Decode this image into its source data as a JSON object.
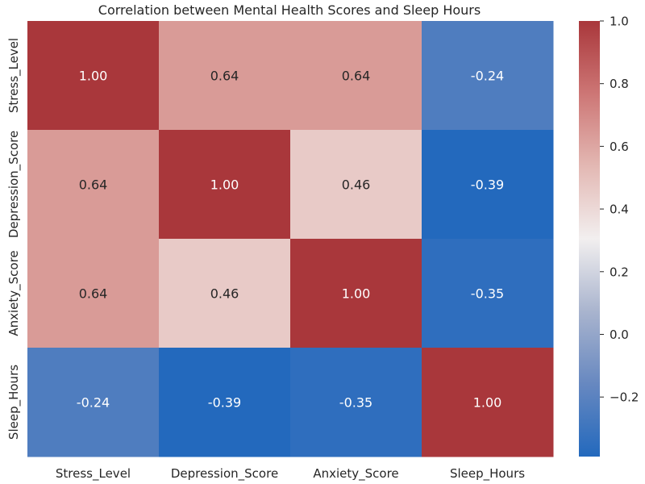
{
  "chart_data": {
    "type": "heatmap",
    "title": "Correlation between Mental Health Scores and Sleep Hours",
    "xlabel": "",
    "ylabel": "",
    "rows": [
      "Stress_Level",
      "Depression_Score",
      "Anxiety_Score",
      "Sleep_Hours"
    ],
    "columns": [
      "Stress_Level",
      "Depression_Score",
      "Anxiety_Score",
      "Sleep_Hours"
    ],
    "values": [
      [
        1.0,
        0.64,
        0.64,
        -0.24
      ],
      [
        0.64,
        1.0,
        0.46,
        -0.39
      ],
      [
        0.64,
        0.46,
        1.0,
        -0.35
      ],
      [
        -0.24,
        -0.39,
        -0.35,
        1.0
      ]
    ],
    "annotation_format": "0.00",
    "colorbar": {
      "min": -0.39,
      "max": 1.0,
      "ticks": [
        1.0,
        0.8,
        0.6,
        0.4,
        0.2,
        0.0,
        -0.2
      ],
      "tick_labels": [
        "1.0",
        "0.8",
        "0.6",
        "0.4",
        "0.2",
        "0.0",
        "−0.2"
      ],
      "colormap": "vlag",
      "color_stops": [
        "#2369bd",
        "#6788c0",
        "#a9b4ce",
        "#f2efef",
        "#e3b8b3",
        "#cd7675",
        "#a9373b"
      ]
    },
    "grid": false
  }
}
